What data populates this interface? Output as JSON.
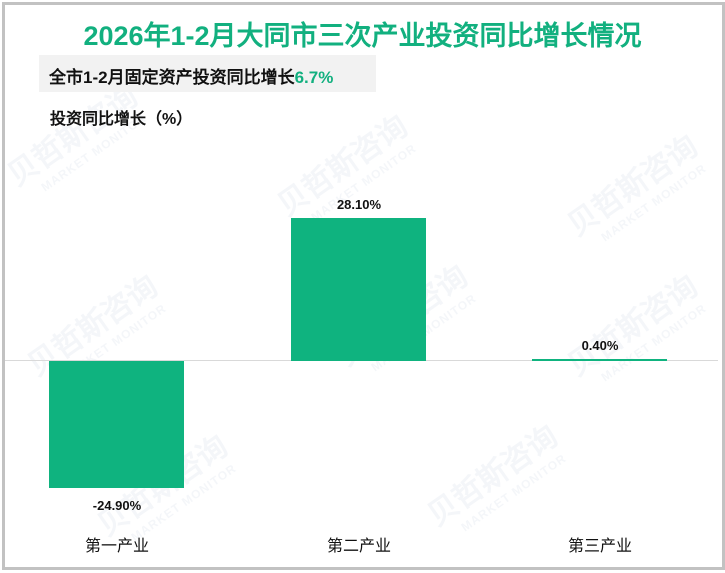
{
  "header": {
    "title": "2026年1-2月大同市三次产业投资同比增长情况",
    "summary_prefix": "全市1-2月固定资产投资同比增长",
    "summary_value": "6.7%",
    "y_axis_label": "投资同比增长（%）"
  },
  "watermark": {
    "cn": "贝哲斯咨询",
    "en": "MARKET MONITOR"
  },
  "colors": {
    "accent": "#12b07f",
    "bar": "#0fb37f",
    "axis": "#d9d9d9",
    "frame": "#c2c2c2",
    "summary_bg": "#f2f2f2"
  },
  "bars": [
    {
      "category": "第一产业",
      "value": -24.9,
      "label": "-24.90%"
    },
    {
      "category": "第二产业",
      "value": 28.1,
      "label": "28.10%"
    },
    {
      "category": "第三产业",
      "value": 0.4,
      "label": "0.40%"
    }
  ],
  "chart_data": {
    "type": "bar",
    "title": "2026年1-2月大同市三次产业投资同比增长情况",
    "subtitle": "全市1-2月固定资产投资同比增长6.7%",
    "categories": [
      "第一产业",
      "第二产业",
      "第三产业"
    ],
    "values": [
      -24.9,
      28.1,
      0.4
    ],
    "data_labels": [
      "-24.90%",
      "28.10%",
      "0.40%"
    ],
    "xlabel": "",
    "ylabel": "投资同比增长（%）",
    "ylim": [
      -28,
      40
    ],
    "grid": false,
    "legend": "none"
  }
}
